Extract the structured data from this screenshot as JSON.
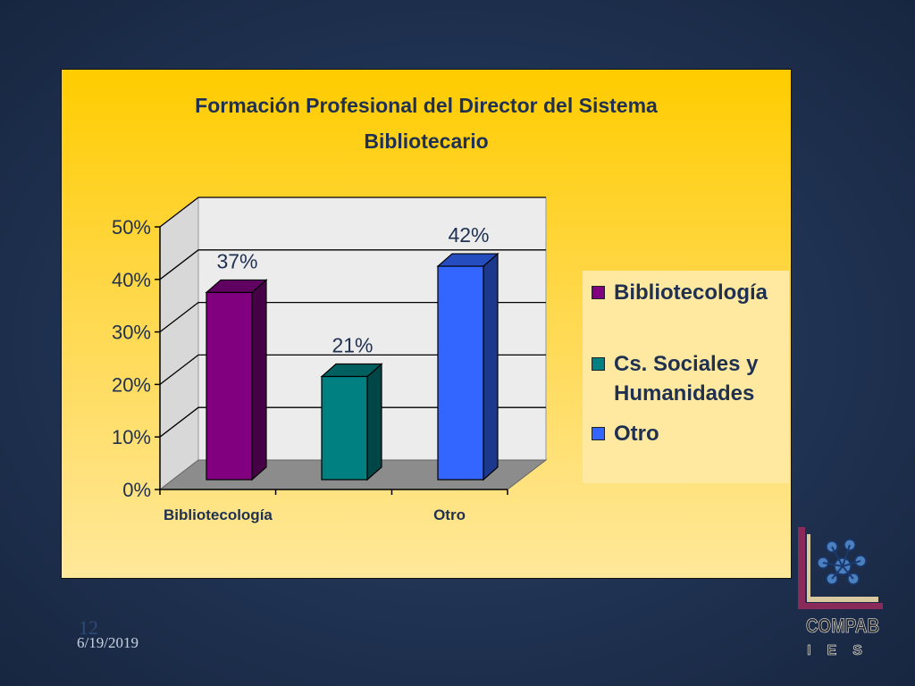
{
  "slide": {
    "number": "12",
    "date": "6/19/2019"
  },
  "colors": {
    "background": "#1f3150",
    "panel": "#ffcc00",
    "bibliotecologia": "#800080",
    "cs_sociales": "#008080",
    "otro": "#3366ff"
  },
  "chart_data": {
    "type": "bar",
    "title": "Formación Profesional del Director del Sistema Bibliotecario",
    "title_lines": [
      "Formación Profesional del Director del Sistema",
      "Bibliotecario"
    ],
    "categories": [
      "Bibliotecología",
      "Otro"
    ],
    "series": [
      {
        "name": "Bibliotecología",
        "value": 37,
        "label": "37%",
        "color": "#800080"
      },
      {
        "name": "Cs. Sociales y Humanidades",
        "value": 21,
        "label": "21%",
        "color": "#008080"
      },
      {
        "name": "Otro",
        "value": 42,
        "label": "42%",
        "color": "#3366ff"
      }
    ],
    "legend_lines": [
      [
        "Bibliotecología"
      ],
      [
        "Cs. Sociales y",
        "Humanidades"
      ],
      [
        "Otro"
      ]
    ],
    "y_ticks": [
      "0%",
      "10%",
      "20%",
      "30%",
      "40%",
      "50%"
    ],
    "ylim": [
      0,
      50
    ],
    "grid": true,
    "legend_position": "right",
    "style": "3d"
  },
  "logo": {
    "text_top": "COMPAB",
    "text_bottom": "IES"
  }
}
